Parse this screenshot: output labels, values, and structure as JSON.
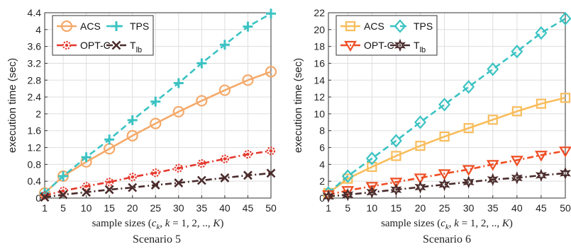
{
  "chart_data": [
    {
      "type": "line",
      "caption": "Scenario 5",
      "xlabel": "sample sizes (c_k, k = 1, 2, .., K)",
      "ylabel": "execution time (sec)",
      "x": [
        1,
        5,
        10,
        15,
        20,
        25,
        30,
        35,
        40,
        45,
        50
      ],
      "xticks": [
        1,
        5,
        10,
        15,
        20,
        25,
        30,
        35,
        40,
        45,
        50
      ],
      "xlim": [
        1,
        50
      ],
      "ylim": [
        0,
        4.4
      ],
      "yticks": [
        0,
        0.4,
        0.8,
        1.2,
        1.6,
        2,
        2.4,
        2.8,
        3.2,
        3.6,
        4,
        4.4
      ],
      "ytick_labels": [
        "0",
        "0.4",
        "0.8",
        "1.2",
        "1.6",
        "2",
        "2.4",
        "2.8",
        "3.2",
        "3.6",
        "4",
        "4.4"
      ],
      "grid": true,
      "legend": "top-left",
      "series": [
        {
          "name": "ACS",
          "values": [
            0.12,
            0.52,
            0.86,
            1.17,
            1.48,
            1.77,
            2.05,
            2.31,
            2.56,
            2.8,
            3.0
          ],
          "color": "#f5a96a",
          "marker": "circle",
          "dash": "solid"
        },
        {
          "name": "TPS",
          "values": [
            0.12,
            0.52,
            0.97,
            1.39,
            1.85,
            2.29,
            2.73,
            3.2,
            3.64,
            4.07,
            4.38
          ],
          "color": "#3cc3c3",
          "marker": "plus",
          "dash": "dashed"
        },
        {
          "name": "OPT-C",
          "values": [
            0.06,
            0.17,
            0.28,
            0.38,
            0.5,
            0.6,
            0.71,
            0.82,
            0.93,
            1.04,
            1.12
          ],
          "color": "#e4382c",
          "marker": "gear",
          "dash": "dashdot"
        },
        {
          "name": "T",
          "sub": "lb",
          "values": [
            0.02,
            0.08,
            0.14,
            0.2,
            0.25,
            0.31,
            0.36,
            0.42,
            0.48,
            0.54,
            0.59
          ],
          "color": "#4a2b2b",
          "marker": "x",
          "dash": "dashdot"
        }
      ]
    },
    {
      "type": "line",
      "caption": "Scenario 6",
      "xlabel": "sample sizes (c_k, k = 1, 2, .., K)",
      "ylabel": "execution time (sec)",
      "x": [
        1,
        5,
        10,
        15,
        20,
        25,
        30,
        35,
        40,
        45,
        50
      ],
      "xticks": [
        1,
        5,
        10,
        15,
        20,
        25,
        30,
        35,
        40,
        45,
        50
      ],
      "xlim": [
        1,
        50
      ],
      "ylim": [
        0,
        22
      ],
      "yticks": [
        0,
        2,
        4,
        6,
        8,
        10,
        12,
        14,
        16,
        18,
        20,
        22
      ],
      "ytick_labels": [
        "0",
        "2",
        "4",
        "6",
        "8",
        "10",
        "12",
        "14",
        "16",
        "18",
        "20",
        "22"
      ],
      "grid": true,
      "legend": "top-left",
      "series": [
        {
          "name": "ACS",
          "values": [
            0.6,
            2.3,
            3.7,
            5.0,
            6.2,
            7.3,
            8.3,
            9.3,
            10.3,
            11.2,
            11.9
          ],
          "color": "#f8bd5c",
          "marker": "square",
          "dash": "solid"
        },
        {
          "name": "TPS",
          "values": [
            0.6,
            2.6,
            4.7,
            6.8,
            9.0,
            11.1,
            13.2,
            15.3,
            17.4,
            19.6,
            21.3
          ],
          "color": "#3cc3c3",
          "marker": "diamond",
          "dash": "dashed"
        },
        {
          "name": "OPT-C",
          "values": [
            0.4,
            0.9,
            1.4,
            1.9,
            2.4,
            2.9,
            3.4,
            4.0,
            4.5,
            5.1,
            5.6
          ],
          "color": "#ee4d22",
          "marker": "triangle-down",
          "dash": "dashdot"
        },
        {
          "name": "T",
          "sub": "lb",
          "values": [
            0.2,
            0.4,
            0.7,
            1.0,
            1.3,
            1.6,
            1.9,
            2.2,
            2.4,
            2.7,
            2.95
          ],
          "color": "#4a2b2b",
          "marker": "star",
          "dash": "dashdot"
        }
      ]
    }
  ]
}
